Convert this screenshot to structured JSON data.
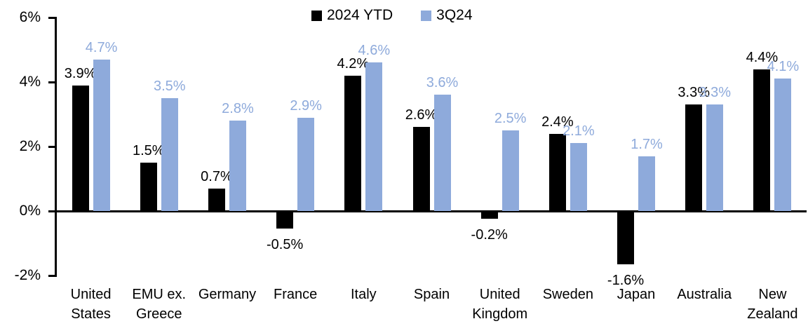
{
  "colors": {
    "series_2024ytd": "#000000",
    "series_3q24": "#8EAADB",
    "axis": "#000000",
    "background": "#ffffff"
  },
  "legend": {
    "items": [
      {
        "label": "2024 YTD",
        "color": "#000000"
      },
      {
        "label": "3Q24",
        "color": "#8EAADB"
      }
    ]
  },
  "chart_data": {
    "type": "bar",
    "title": "",
    "xlabel": "",
    "ylabel": "",
    "ylim": [
      -2,
      6
    ],
    "ytick_values": [
      6,
      4,
      2,
      0,
      -2
    ],
    "ytick_labels": [
      "6%",
      "4%",
      "2%",
      "0%",
      "-2%"
    ],
    "grid": "off",
    "legend_position": "top-center",
    "value_label_suffix": "%",
    "categories": [
      "United States",
      "EMU ex. Greece",
      "Germany",
      "France",
      "Italy",
      "Spain",
      "United Kingdom",
      "Sweden",
      "Japan",
      "Australia",
      "New Zealand"
    ],
    "category_lines": [
      [
        "United",
        "States"
      ],
      [
        "EMU ex.",
        "Greece"
      ],
      [
        "Germany"
      ],
      [
        "France"
      ],
      [
        "Italy"
      ],
      [
        "Spain"
      ],
      [
        "United",
        "Kingdom"
      ],
      [
        "Sweden"
      ],
      [
        "Japan"
      ],
      [
        "Australia"
      ],
      [
        "New",
        "Zealand"
      ]
    ],
    "series": [
      {
        "name": "2024 YTD",
        "color": "#000000",
        "values": [
          3.9,
          1.5,
          0.7,
          -0.5,
          4.2,
          2.6,
          -0.2,
          2.4,
          -1.6,
          3.3,
          4.4
        ],
        "labels": [
          "3.9%",
          "1.5%",
          "0.7%",
          "-0.5%",
          "4.2%",
          "2.6%",
          "-0.2%",
          "2.4%",
          "-1.6%",
          "3.3%",
          "4.4%"
        ]
      },
      {
        "name": "3Q24",
        "color": "#8EAADB",
        "values": [
          4.7,
          3.5,
          2.8,
          2.9,
          4.6,
          3.6,
          2.5,
          2.1,
          1.7,
          3.3,
          4.1
        ],
        "labels": [
          "4.7%",
          "3.5%",
          "2.8%",
          "2.9%",
          "4.6%",
          "3.6%",
          "2.5%",
          "2.1%",
          "1.7%",
          "3.3%",
          "4.1%"
        ]
      }
    ]
  }
}
